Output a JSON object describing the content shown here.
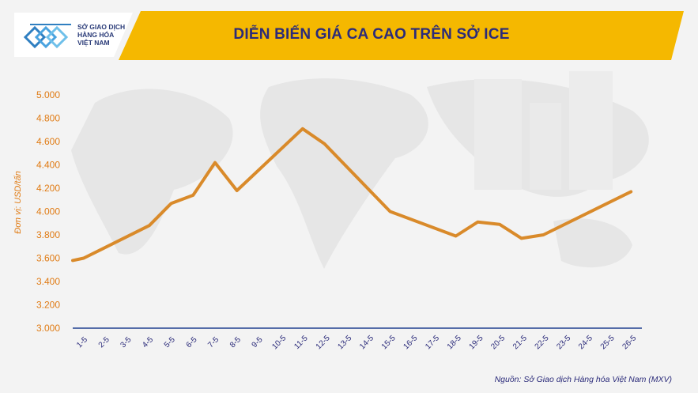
{
  "header": {
    "logo_lines": [
      "SỞ GIAO DỊCH",
      "HÀNG HÓA",
      "VIỆT NAM"
    ],
    "title": "DIỄN BIẾN GIÁ CA CAO TRÊN SỞ ICE"
  },
  "source_note": "Nguồn: Sở Giao dịch Hàng hóa Việt Nam (MXV)",
  "colors": {
    "accent": "#f5b800",
    "line": "#d98a2a",
    "axis_text": "#e07b14",
    "title_text": "#2b2b7a",
    "axis_line": "#1f3f8f"
  },
  "chart_data": {
    "type": "line",
    "ylabel": "Đơn vị: USD/tấn",
    "xlabel": "",
    "ylim": [
      3000,
      5000
    ],
    "yticks": [
      3000,
      3200,
      3400,
      3600,
      3800,
      4000,
      4200,
      4400,
      4600,
      4800,
      5000
    ],
    "ytick_labels": [
      "3.000",
      "3.200",
      "3.400",
      "3.600",
      "3.800",
      "4.000",
      "4.200",
      "4.400",
      "4.600",
      "4.800",
      "5.000"
    ],
    "grid": false,
    "categories": [
      "1-5",
      "2-5",
      "3-5",
      "4-5",
      "5-5",
      "6-5",
      "7-5",
      "8-5",
      "9-5",
      "10-5",
      "11-5",
      "12-5",
      "13-5",
      "14-5",
      "15-5",
      "16-5",
      "17-5",
      "18-5",
      "19-5",
      "20-5",
      "21-5",
      "22-5",
      "23-5",
      "24-5",
      "25-5",
      "26-5"
    ],
    "points": [
      {
        "x": 0.0,
        "y": 3580
      },
      {
        "x": 0.5,
        "y": 3600
      },
      {
        "x": 3.5,
        "y": 3880
      },
      {
        "x": 4.5,
        "y": 4070
      },
      {
        "x": 5.5,
        "y": 4140
      },
      {
        "x": 6.5,
        "y": 4420
      },
      {
        "x": 7.5,
        "y": 4180
      },
      {
        "x": 10.5,
        "y": 4710
      },
      {
        "x": 11.5,
        "y": 4580
      },
      {
        "x": 14.5,
        "y": 4000
      },
      {
        "x": 17.5,
        "y": 3790
      },
      {
        "x": 18.5,
        "y": 3910
      },
      {
        "x": 19.5,
        "y": 3890
      },
      {
        "x": 20.5,
        "y": 3770
      },
      {
        "x": 21.5,
        "y": 3800
      },
      {
        "x": 25.5,
        "y": 4170
      }
    ]
  }
}
